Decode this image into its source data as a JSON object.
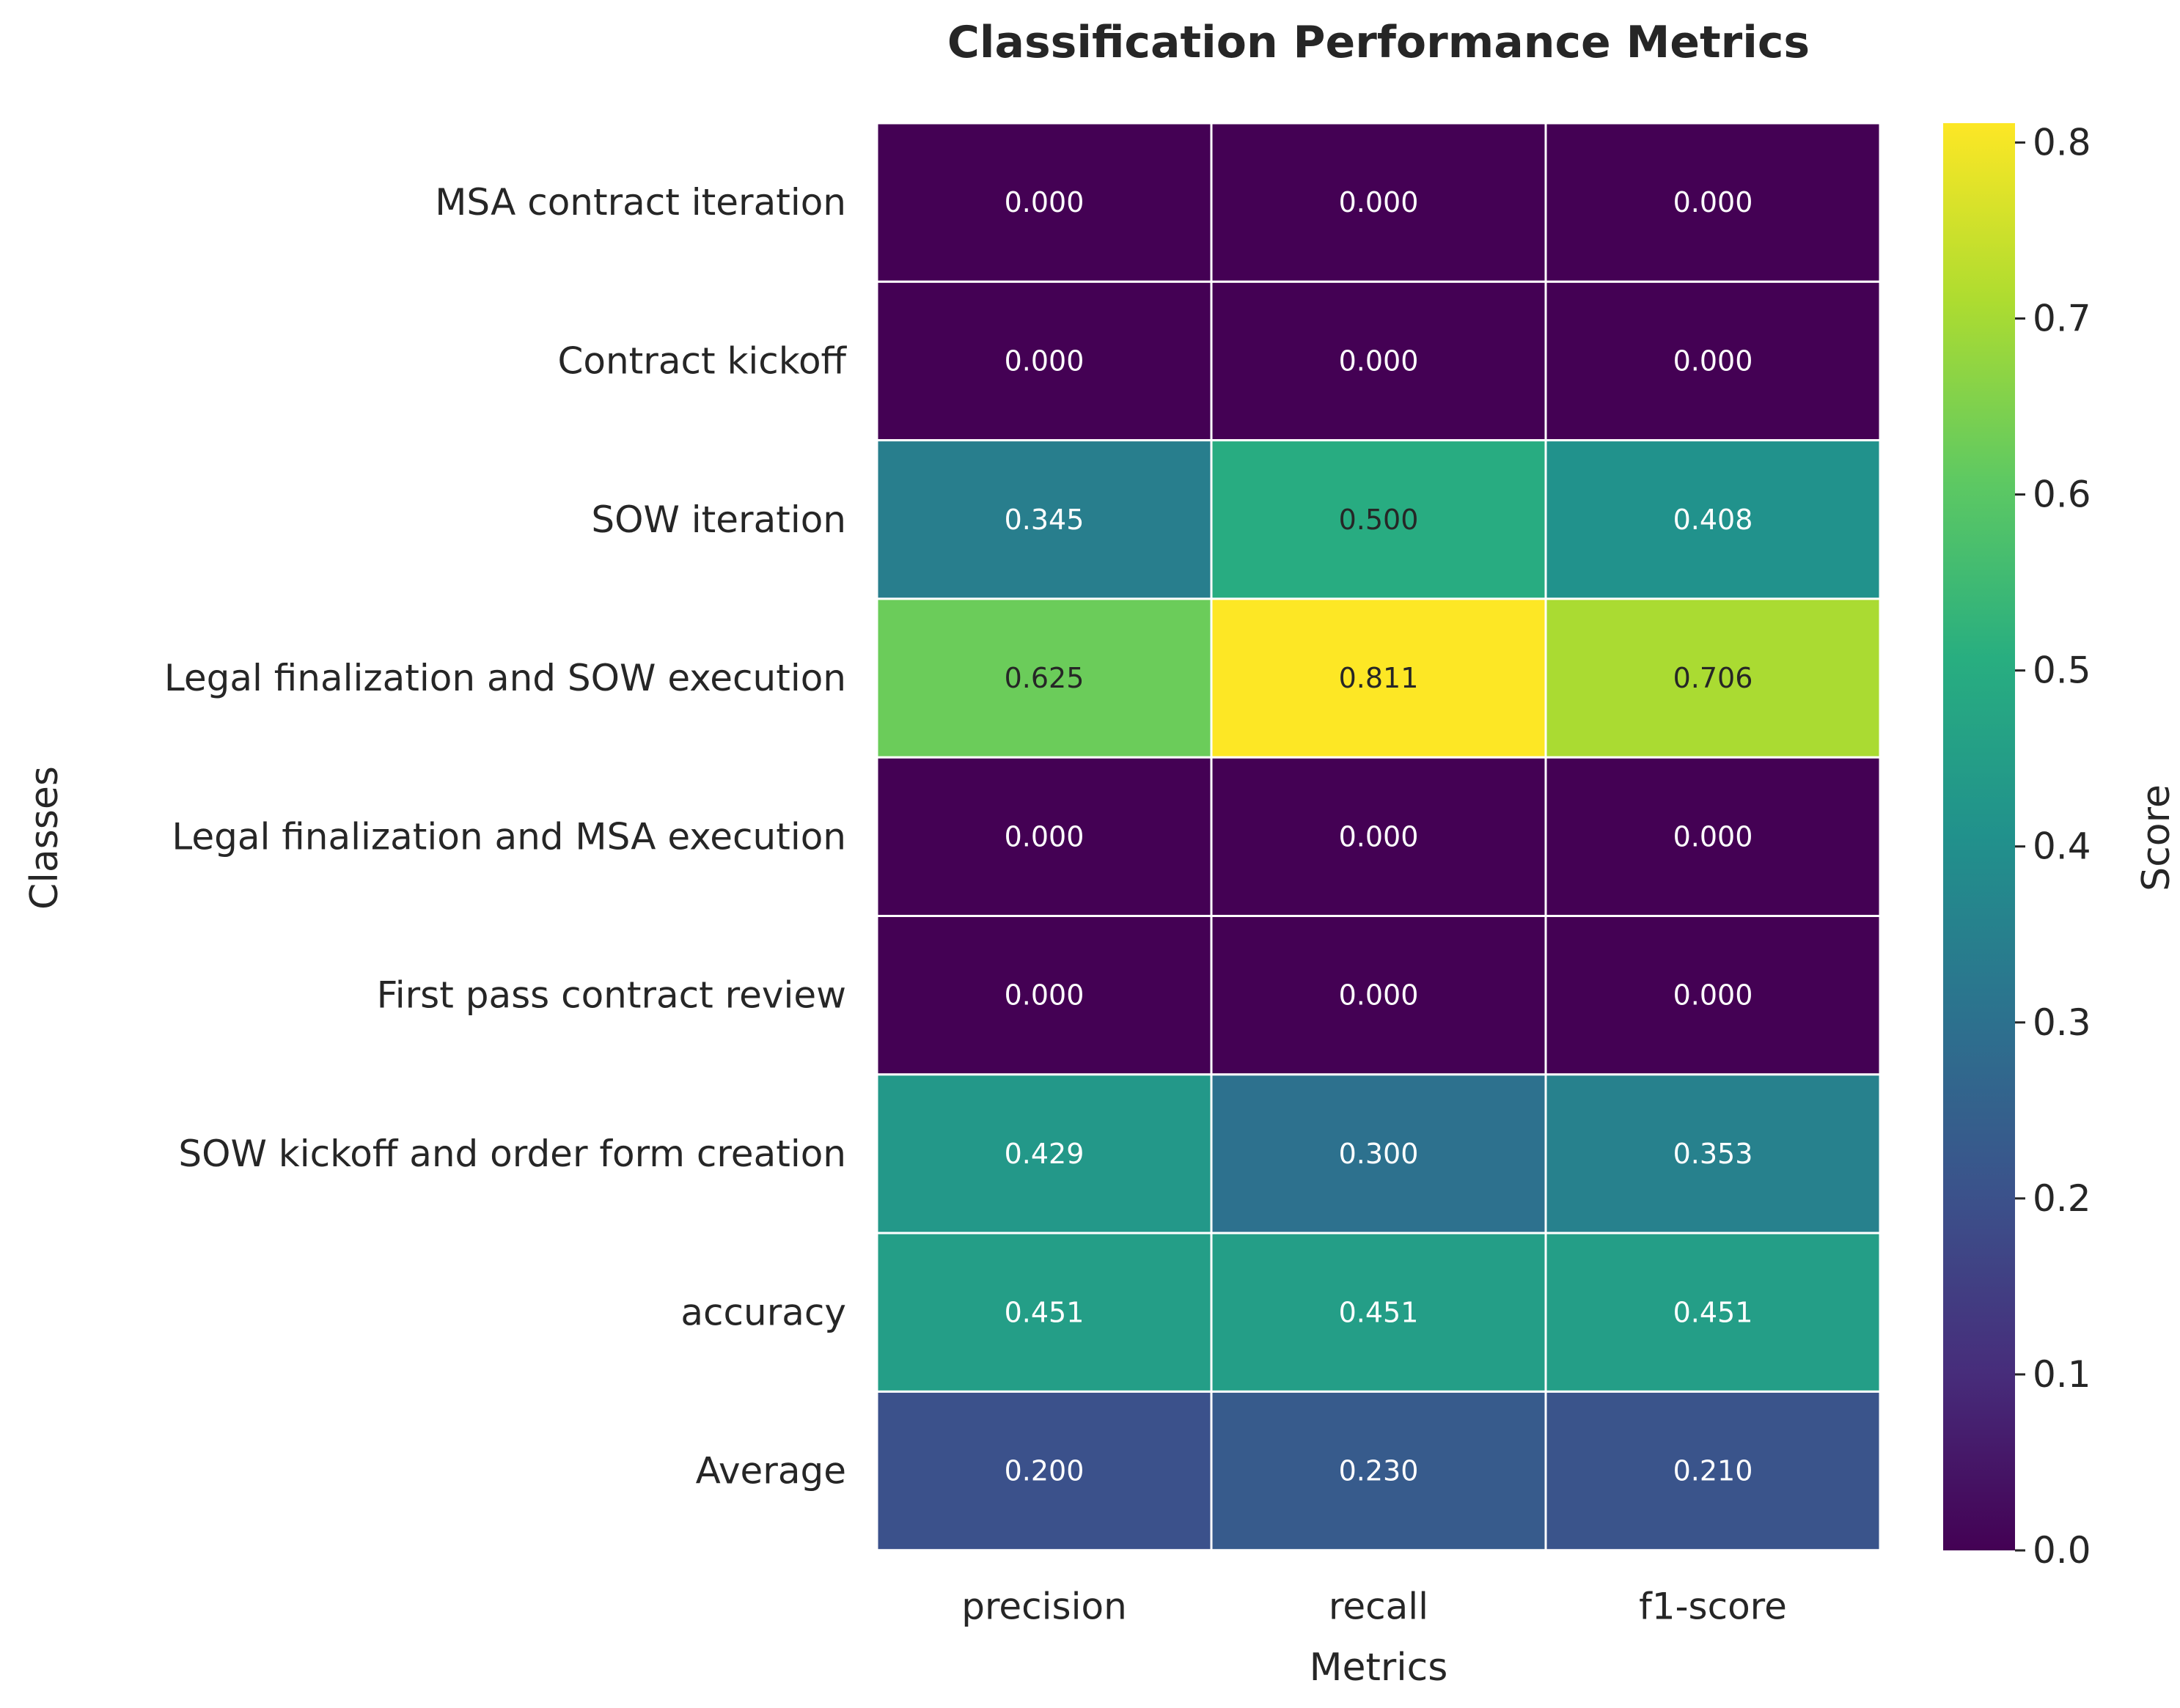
{
  "chart_data": {
    "type": "heatmap",
    "title": "Classification Performance Metrics",
    "xlabel": "Metrics",
    "ylabel": "Classes",
    "columns": [
      "precision",
      "recall",
      "f1-score"
    ],
    "rows": [
      "MSA contract iteration",
      "Contract kickoff",
      "SOW iteration",
      "Legal finalization and SOW execution",
      "Legal finalization and MSA execution",
      "First pass contract review",
      "SOW kickoff and order form creation",
      "accuracy",
      "Average"
    ],
    "values": [
      [
        0.0,
        0.0,
        0.0
      ],
      [
        0.0,
        0.0,
        0.0
      ],
      [
        0.345,
        0.5,
        0.408
      ],
      [
        0.625,
        0.811,
        0.706
      ],
      [
        0.0,
        0.0,
        0.0
      ],
      [
        0.0,
        0.0,
        0.0
      ],
      [
        0.429,
        0.3,
        0.353
      ],
      [
        0.451,
        0.451,
        0.451
      ],
      [
        0.2,
        0.23,
        0.21
      ]
    ],
    "cell_labels": [
      [
        "0.000",
        "0.000",
        "0.000"
      ],
      [
        "0.000",
        "0.000",
        "0.000"
      ],
      [
        "0.345",
        "0.500",
        "0.408"
      ],
      [
        "0.625",
        "0.811",
        "0.706"
      ],
      [
        "0.000",
        "0.000",
        "0.000"
      ],
      [
        "0.000",
        "0.000",
        "0.000"
      ],
      [
        "0.429",
        "0.300",
        "0.353"
      ],
      [
        "0.451",
        "0.451",
        "0.451"
      ],
      [
        "0.200",
        "0.230",
        "0.210"
      ]
    ],
    "colormap": "viridis",
    "vmin": 0.0,
    "vmax": 0.811,
    "colorbar": {
      "label": "Score",
      "ticks": [
        "0.0",
        "0.1",
        "0.2",
        "0.3",
        "0.4",
        "0.5",
        "0.6",
        "0.7",
        "0.8"
      ],
      "tick_values": [
        0.0,
        0.1,
        0.2,
        0.3,
        0.4,
        0.5,
        0.6,
        0.7,
        0.8
      ]
    },
    "cell_border_color": "#ffffff",
    "grid": false
  }
}
